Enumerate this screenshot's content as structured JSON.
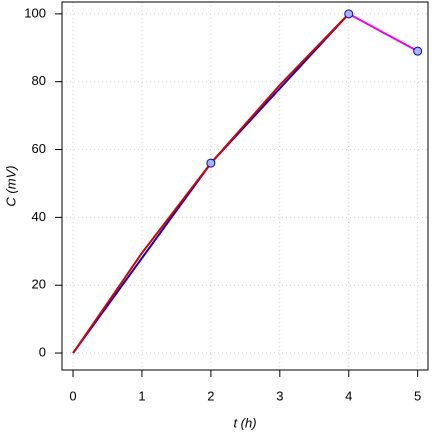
{
  "chart_data": {
    "type": "line",
    "xlabel": "t (h)",
    "ylabel": "C (mV)",
    "xlim": [
      -0.16,
      5.15
    ],
    "ylim": [
      -5,
      103.5
    ],
    "xticks": [
      0,
      1,
      2,
      3,
      4,
      5
    ],
    "yticks": [
      0,
      20,
      40,
      60,
      80,
      100
    ],
    "grid": true,
    "series": [
      {
        "color": "#0000cd",
        "x": [
          0,
          2,
          4
        ],
        "values": [
          0,
          56,
          100
        ],
        "line": true
      },
      {
        "color": "#dd0000",
        "x": [
          0,
          1,
          2,
          3,
          4
        ],
        "values": [
          0,
          29.5,
          56,
          79,
          100
        ],
        "line": true
      },
      {
        "color": "#ee00ee",
        "x": [
          4,
          5
        ],
        "values": [
          100,
          89
        ],
        "line": true
      },
      {
        "color": "#0000cd",
        "marker_fill": "#a4b8ff",
        "x": [
          2,
          4,
          5
        ],
        "values": [
          56,
          100,
          89
        ],
        "line": false
      }
    ]
  }
}
